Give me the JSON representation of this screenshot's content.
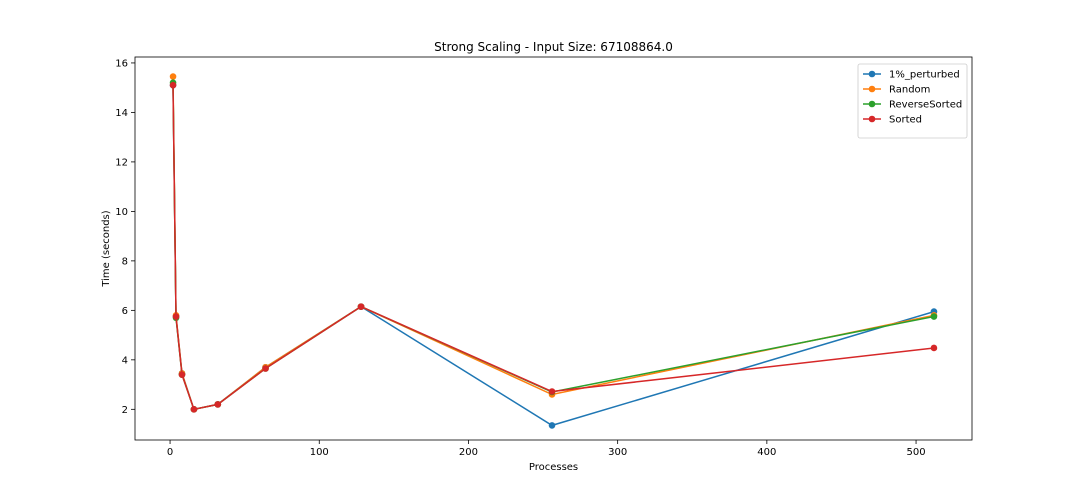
{
  "chart_data": {
    "type": "line",
    "title": "Strong Scaling - Input Size: 67108864.0",
    "xlabel": "Processes",
    "ylabel": "Time (seconds)",
    "xlim": [
      -23.5,
      537.5
    ],
    "ylim": [
      0.76,
      16.24
    ],
    "xticks": [
      0,
      100,
      200,
      300,
      400,
      500
    ],
    "yticks": [
      2,
      4,
      6,
      8,
      10,
      12,
      14,
      16
    ],
    "grid": false,
    "legend_position": "top-right",
    "x": [
      2,
      4,
      8,
      16,
      32,
      64,
      128,
      256,
      512
    ],
    "series": [
      {
        "name": "1%_perturbed",
        "color": "#1f77b4",
        "values": [
          15.1,
          5.75,
          3.45,
          2.0,
          2.2,
          3.7,
          6.15,
          1.35,
          5.95
        ]
      },
      {
        "name": "Random",
        "color": "#ff7f0e",
        "values": [
          15.45,
          5.8,
          3.45,
          2.0,
          2.2,
          3.7,
          6.15,
          2.6,
          5.8
        ]
      },
      {
        "name": "ReverseSorted",
        "color": "#2ca02c",
        "values": [
          15.2,
          5.7,
          3.4,
          2.0,
          2.2,
          3.65,
          6.15,
          2.7,
          5.75
        ]
      },
      {
        "name": "Sorted",
        "color": "#d62728",
        "values": [
          15.1,
          5.75,
          3.4,
          2.0,
          2.2,
          3.65,
          6.15,
          2.72,
          4.48
        ]
      }
    ]
  }
}
